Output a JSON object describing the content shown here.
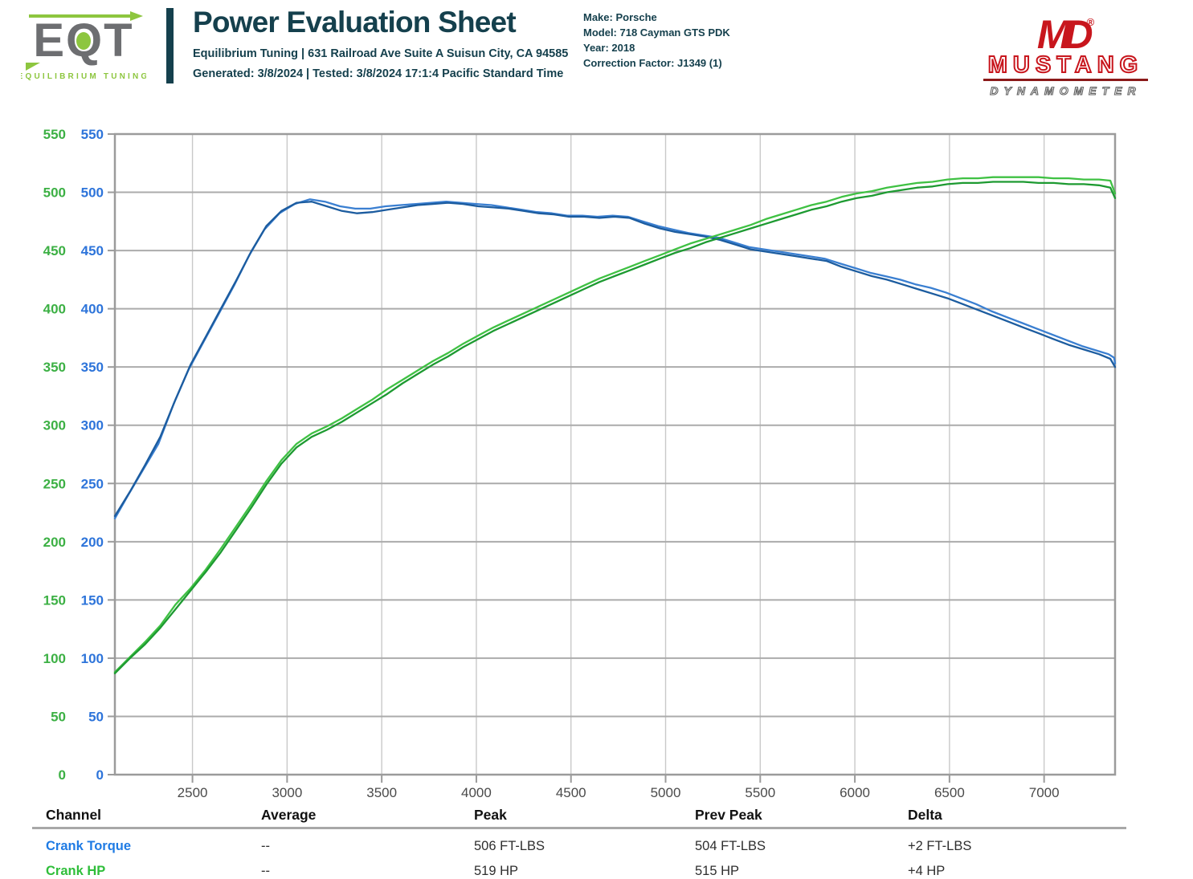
{
  "header": {
    "logo": {
      "text": "EQT",
      "subtext": "EQUILIBRIUM TUNING"
    },
    "title": "Power Evaluation Sheet",
    "address_line": "Equilibrium Tuning | 631 Railroad Ave Suite A Suisun City, CA 94585",
    "generated_line": "Generated: 3/8/2024 | Tested: 3/8/2024 17:1:4 Pacific Standard Time",
    "vehicle": {
      "make": "Make: Porsche",
      "model": "Model: 718 Cayman GTS PDK",
      "year": "Year: 2018",
      "correction": "Correction Factor: J1349 (1)"
    },
    "dyno_logo": {
      "initials": "MD",
      "reg": "®",
      "name": "MUSTANG",
      "sub": "DYNAMOMETER"
    }
  },
  "colors": {
    "teal": "#15404d",
    "logo_gray": "#6d6e71",
    "logo_green": "#8dc63f",
    "mustang_red": "#c8161d",
    "grid": "#ababab",
    "border": "#9b9b9b",
    "hp_axis": "#3cb044",
    "torque_axis": "#2d74da"
  },
  "chart_data": {
    "type": "line",
    "title": "",
    "grid": true,
    "legend_position": "none",
    "x_axis": {
      "range": [
        2090,
        7375
      ],
      "ticks": [
        2500,
        3000,
        3500,
        4000,
        4500,
        5000,
        5500,
        6000,
        6500,
        7000
      ]
    },
    "y_axis": {
      "range": [
        0,
        550
      ],
      "ticks": [
        0,
        50,
        100,
        150,
        200,
        250,
        300,
        350,
        400,
        450,
        500,
        550
      ]
    },
    "series": [
      {
        "name": "Crank Torque (current run)",
        "unit": "FT-LBS",
        "color": "#3a7fd1",
        "points": [
          [
            2090,
            220
          ],
          [
            2160,
            240
          ],
          [
            2240,
            262
          ],
          [
            2320,
            284
          ],
          [
            2400,
            318
          ],
          [
            2480,
            348
          ],
          [
            2560,
            372
          ],
          [
            2640,
            396
          ],
          [
            2720,
            420
          ],
          [
            2800,
            446
          ],
          [
            2880,
            468
          ],
          [
            2960,
            482
          ],
          [
            3040,
            490
          ],
          [
            3120,
            494
          ],
          [
            3200,
            492
          ],
          [
            3280,
            488
          ],
          [
            3360,
            486
          ],
          [
            3440,
            486
          ],
          [
            3520,
            488
          ],
          [
            3600,
            489
          ],
          [
            3680,
            490
          ],
          [
            3760,
            491
          ],
          [
            3840,
            492
          ],
          [
            3920,
            491
          ],
          [
            4000,
            490
          ],
          [
            4080,
            489
          ],
          [
            4160,
            487
          ],
          [
            4240,
            485
          ],
          [
            4320,
            483
          ],
          [
            4400,
            482
          ],
          [
            4480,
            480
          ],
          [
            4560,
            480
          ],
          [
            4640,
            479
          ],
          [
            4720,
            480
          ],
          [
            4800,
            479
          ],
          [
            4880,
            475
          ],
          [
            4960,
            471
          ],
          [
            5040,
            468
          ],
          [
            5120,
            465
          ],
          [
            5200,
            463
          ],
          [
            5280,
            461
          ],
          [
            5360,
            457
          ],
          [
            5440,
            453
          ],
          [
            5520,
            451
          ],
          [
            5600,
            449
          ],
          [
            5680,
            447
          ],
          [
            5760,
            445
          ],
          [
            5840,
            443
          ],
          [
            5920,
            439
          ],
          [
            6000,
            435
          ],
          [
            6080,
            431
          ],
          [
            6160,
            428
          ],
          [
            6240,
            425
          ],
          [
            6320,
            421
          ],
          [
            6400,
            418
          ],
          [
            6480,
            414
          ],
          [
            6560,
            409
          ],
          [
            6640,
            404
          ],
          [
            6720,
            398
          ],
          [
            6800,
            393
          ],
          [
            6880,
            388
          ],
          [
            6960,
            383
          ],
          [
            7040,
            378
          ],
          [
            7120,
            373
          ],
          [
            7200,
            368
          ],
          [
            7280,
            364
          ],
          [
            7340,
            361
          ],
          [
            7370,
            358
          ],
          [
            7375,
            353
          ]
        ]
      },
      {
        "name": "Crank Torque (previous run)",
        "unit": "FT-LBS",
        "color": "#1c5c9f",
        "points": [
          [
            2090,
            222
          ],
          [
            2170,
            243
          ],
          [
            2250,
            266
          ],
          [
            2330,
            290
          ],
          [
            2410,
            322
          ],
          [
            2490,
            352
          ],
          [
            2570,
            376
          ],
          [
            2650,
            400
          ],
          [
            2730,
            424
          ],
          [
            2810,
            449
          ],
          [
            2890,
            471
          ],
          [
            2970,
            484
          ],
          [
            3050,
            491
          ],
          [
            3130,
            492
          ],
          [
            3210,
            488
          ],
          [
            3290,
            484
          ],
          [
            3370,
            482
          ],
          [
            3450,
            483
          ],
          [
            3530,
            485
          ],
          [
            3610,
            487
          ],
          [
            3690,
            489
          ],
          [
            3770,
            490
          ],
          [
            3850,
            491
          ],
          [
            3930,
            490
          ],
          [
            4010,
            488
          ],
          [
            4090,
            487
          ],
          [
            4170,
            486
          ],
          [
            4250,
            484
          ],
          [
            4330,
            482
          ],
          [
            4410,
            481
          ],
          [
            4490,
            479
          ],
          [
            4570,
            479
          ],
          [
            4650,
            478
          ],
          [
            4730,
            479
          ],
          [
            4810,
            478
          ],
          [
            4890,
            473
          ],
          [
            4970,
            469
          ],
          [
            5050,
            466
          ],
          [
            5130,
            464
          ],
          [
            5210,
            462
          ],
          [
            5290,
            459
          ],
          [
            5370,
            455
          ],
          [
            5450,
            451
          ],
          [
            5530,
            449
          ],
          [
            5610,
            447
          ],
          [
            5690,
            445
          ],
          [
            5770,
            443
          ],
          [
            5850,
            441
          ],
          [
            5930,
            436
          ],
          [
            6010,
            432
          ],
          [
            6090,
            428
          ],
          [
            6170,
            425
          ],
          [
            6250,
            421
          ],
          [
            6330,
            417
          ],
          [
            6410,
            413
          ],
          [
            6490,
            409
          ],
          [
            6570,
            404
          ],
          [
            6650,
            399
          ],
          [
            6730,
            394
          ],
          [
            6810,
            389
          ],
          [
            6890,
            384
          ],
          [
            6970,
            379
          ],
          [
            7050,
            374
          ],
          [
            7130,
            369
          ],
          [
            7210,
            365
          ],
          [
            7290,
            361
          ],
          [
            7350,
            357
          ],
          [
            7375,
            350
          ]
        ]
      },
      {
        "name": "Crank HP (current run)",
        "unit": "HP",
        "color": "#3fc143",
        "points": [
          [
            2090,
            88
          ],
          [
            2170,
            101
          ],
          [
            2250,
            114
          ],
          [
            2330,
            128
          ],
          [
            2410,
            146
          ],
          [
            2490,
            160
          ],
          [
            2570,
            176
          ],
          [
            2650,
            194
          ],
          [
            2730,
            213
          ],
          [
            2810,
            232
          ],
          [
            2890,
            252
          ],
          [
            2970,
            270
          ],
          [
            3050,
            284
          ],
          [
            3130,
            293
          ],
          [
            3210,
            299
          ],
          [
            3290,
            306
          ],
          [
            3370,
            314
          ],
          [
            3450,
            322
          ],
          [
            3530,
            331
          ],
          [
            3610,
            339
          ],
          [
            3690,
            347
          ],
          [
            3770,
            355
          ],
          [
            3850,
            362
          ],
          [
            3930,
            370
          ],
          [
            4010,
            377
          ],
          [
            4090,
            384
          ],
          [
            4170,
            390
          ],
          [
            4250,
            396
          ],
          [
            4330,
            402
          ],
          [
            4410,
            408
          ],
          [
            4490,
            414
          ],
          [
            4570,
            420
          ],
          [
            4650,
            426
          ],
          [
            4730,
            431
          ],
          [
            4810,
            436
          ],
          [
            4890,
            441
          ],
          [
            4970,
            446
          ],
          [
            5050,
            451
          ],
          [
            5130,
            456
          ],
          [
            5210,
            460
          ],
          [
            5290,
            464
          ],
          [
            5370,
            468
          ],
          [
            5450,
            472
          ],
          [
            5530,
            477
          ],
          [
            5610,
            481
          ],
          [
            5690,
            485
          ],
          [
            5770,
            489
          ],
          [
            5850,
            492
          ],
          [
            5930,
            496
          ],
          [
            6010,
            499
          ],
          [
            6090,
            501
          ],
          [
            6170,
            504
          ],
          [
            6250,
            506
          ],
          [
            6330,
            508
          ],
          [
            6410,
            509
          ],
          [
            6490,
            511
          ],
          [
            6570,
            512
          ],
          [
            6650,
            512
          ],
          [
            6730,
            513
          ],
          [
            6810,
            513
          ],
          [
            6890,
            513
          ],
          [
            6970,
            513
          ],
          [
            7050,
            512
          ],
          [
            7130,
            512
          ],
          [
            7210,
            511
          ],
          [
            7290,
            511
          ],
          [
            7350,
            510
          ],
          [
            7375,
            499
          ]
        ]
      },
      {
        "name": "Crank HP (previous run)",
        "unit": "HP",
        "color": "#1d9a31",
        "points": [
          [
            2090,
            87
          ],
          [
            2170,
            100
          ],
          [
            2250,
            112
          ],
          [
            2330,
            126
          ],
          [
            2410,
            142
          ],
          [
            2490,
            158
          ],
          [
            2570,
            174
          ],
          [
            2650,
            191
          ],
          [
            2730,
            210
          ],
          [
            2810,
            229
          ],
          [
            2890,
            249
          ],
          [
            2970,
            267
          ],
          [
            3050,
            281
          ],
          [
            3130,
            290
          ],
          [
            3210,
            296
          ],
          [
            3290,
            303
          ],
          [
            3370,
            311
          ],
          [
            3450,
            319
          ],
          [
            3530,
            327
          ],
          [
            3610,
            336
          ],
          [
            3690,
            344
          ],
          [
            3770,
            352
          ],
          [
            3850,
            359
          ],
          [
            3930,
            367
          ],
          [
            4010,
            374
          ],
          [
            4090,
            381
          ],
          [
            4170,
            387
          ],
          [
            4250,
            393
          ],
          [
            4330,
            399
          ],
          [
            4410,
            405
          ],
          [
            4490,
            411
          ],
          [
            4570,
            417
          ],
          [
            4650,
            423
          ],
          [
            4730,
            428
          ],
          [
            4810,
            433
          ],
          [
            4890,
            438
          ],
          [
            4970,
            443
          ],
          [
            5050,
            448
          ],
          [
            5130,
            452
          ],
          [
            5210,
            457
          ],
          [
            5290,
            461
          ],
          [
            5370,
            465
          ],
          [
            5450,
            469
          ],
          [
            5530,
            473
          ],
          [
            5610,
            477
          ],
          [
            5690,
            481
          ],
          [
            5770,
            485
          ],
          [
            5850,
            488
          ],
          [
            5930,
            492
          ],
          [
            6010,
            495
          ],
          [
            6090,
            497
          ],
          [
            6170,
            500
          ],
          [
            6250,
            502
          ],
          [
            6330,
            504
          ],
          [
            6410,
            505
          ],
          [
            6490,
            507
          ],
          [
            6570,
            508
          ],
          [
            6650,
            508
          ],
          [
            6730,
            509
          ],
          [
            6810,
            509
          ],
          [
            6890,
            509
          ],
          [
            6970,
            508
          ],
          [
            7050,
            508
          ],
          [
            7130,
            507
          ],
          [
            7210,
            507
          ],
          [
            7290,
            506
          ],
          [
            7350,
            504
          ],
          [
            7375,
            495
          ]
        ]
      }
    ]
  },
  "table": {
    "headers": [
      "Channel",
      "Average",
      "Peak",
      "Prev Peak",
      "Delta"
    ],
    "rows": [
      {
        "channel": "Crank Torque",
        "average": "--",
        "peak": "506 FT-LBS",
        "prev_peak": "504 FT-LBS",
        "delta": "+2 FT-LBS",
        "color": "#1f7be4"
      },
      {
        "channel": "Crank HP",
        "average": "--",
        "peak": "519 HP",
        "prev_peak": "515 HP",
        "delta": "+4 HP",
        "color": "#2fbe3a"
      }
    ]
  }
}
